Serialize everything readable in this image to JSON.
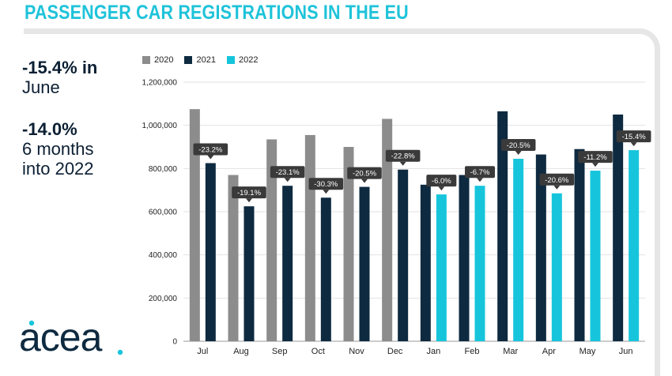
{
  "page": {
    "title": "PASSENGER CAR REGISTRATIONS IN THE EU",
    "stat1_value": "-15.4% in",
    "stat1_label": "June",
    "stat2_value": "-14.0%",
    "stat2_line1": "6 months",
    "stat2_line2": "into 2022",
    "logo_text": "acea"
  },
  "colors": {
    "title": "#1ec3d9",
    "s2020": "#8c8c8c",
    "s2021": "#0e2a40",
    "s2022": "#16c5dc",
    "callout": "#3a3a3a"
  },
  "chart_data": {
    "type": "bar",
    "title": "",
    "categories": [
      "Jul",
      "Aug",
      "Sep",
      "Oct",
      "Nov",
      "Dec",
      "Jan",
      "Feb",
      "Mar",
      "Apr",
      "May",
      "Jun"
    ],
    "series": [
      {
        "name": "2020",
        "values": [
          1075000,
          770000,
          935000,
          955000,
          900000,
          1030000,
          null,
          null,
          null,
          null,
          null,
          null
        ]
      },
      {
        "name": "2021",
        "values": [
          825000,
          625000,
          720000,
          665000,
          715000,
          795000,
          725000,
          770000,
          1065000,
          865000,
          890000,
          1050000
        ]
      },
      {
        "name": "2022",
        "values": [
          null,
          null,
          null,
          null,
          null,
          null,
          680000,
          720000,
          845000,
          685000,
          790000,
          885000
        ]
      }
    ],
    "change_labels": [
      "-23.2%",
      "-19.1%",
      "-23.1%",
      "-30.3%",
      "-20.5%",
      "-22.8%",
      "-6.0%",
      "-6.7%",
      "-20.5%",
      "-20.6%",
      "-11.2%",
      "-15.4%"
    ],
    "y_ticks": [
      "0",
      "200,000",
      "400,000",
      "600,000",
      "800,000",
      "1,000,000",
      "1,200,000"
    ],
    "ylim": [
      0,
      1200000
    ],
    "grid": true,
    "legend_position": "top-left"
  }
}
